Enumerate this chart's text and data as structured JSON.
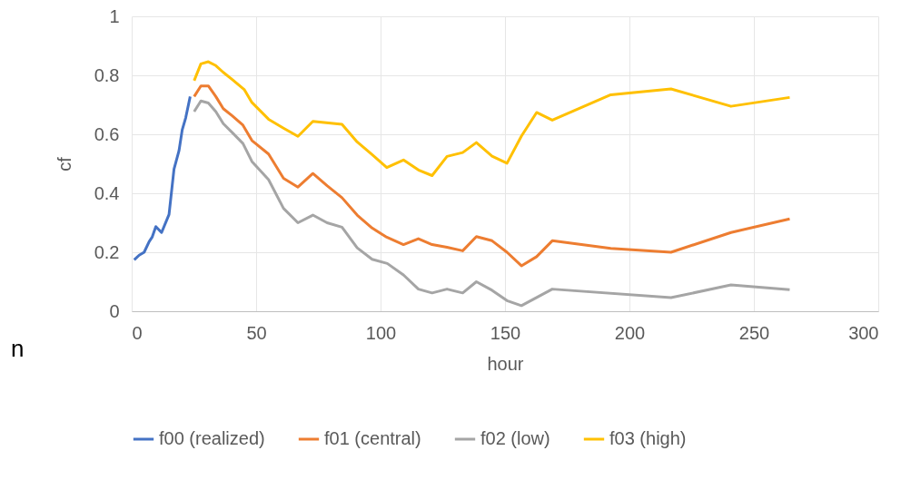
{
  "chart_data": {
    "type": "line",
    "xlabel": "hour",
    "ylabel": "cf",
    "xlim": [
      0,
      300
    ],
    "xticks": [
      0,
      50,
      100,
      150,
      200,
      250,
      300
    ],
    "ylim": [
      0,
      1
    ],
    "yticks": [
      0,
      0.2,
      0.4,
      0.6,
      0.8,
      1
    ],
    "grid": true,
    "legend": "bottom",
    "marker": "none",
    "line_style": "solid",
    "annotations": [
      "n"
    ],
    "series": [
      {
        "name": "f00 (realized)",
        "color": "#4472c4",
        "x": [
          1,
          3,
          5,
          7,
          8.2,
          9.7,
          12,
          15,
          17,
          19,
          20.3,
          21.7,
          23.5
        ],
        "values": [
          0.174,
          0.19,
          0.2,
          0.236,
          0.251,
          0.287,
          0.267,
          0.328,
          0.482,
          0.544,
          0.615,
          0.656,
          0.728
        ]
      },
      {
        "name": "f01 (central)",
        "color": "#ed7d31",
        "x": [
          25.1,
          27.8,
          30.8,
          33.8,
          36.8,
          40.5,
          44.7,
          48.3,
          55,
          61,
          66.8,
          72.8,
          78.5,
          84.5,
          90.6,
          96.6,
          102.5,
          109.2,
          115.2,
          120.7,
          126.7,
          133,
          138.5,
          144.8,
          150.8,
          156.6,
          162.7,
          169,
          192.5,
          216.7,
          240.8,
          264.4
        ],
        "values": [
          0.728,
          0.764,
          0.764,
          0.728,
          0.687,
          0.662,
          0.631,
          0.579,
          0.533,
          0.451,
          0.421,
          0.467,
          0.426,
          0.385,
          0.326,
          0.282,
          0.251,
          0.226,
          0.246,
          0.226,
          0.217,
          0.205,
          0.253,
          0.239,
          0.2,
          0.154,
          0.185,
          0.239,
          0.213,
          0.2,
          0.267,
          0.313
        ]
      },
      {
        "name": "f02 (low)",
        "color": "#a5a5a5",
        "x": [
          25.1,
          27.8,
          30.8,
          33.8,
          36.8,
          40.5,
          44.7,
          48.3,
          55,
          61,
          66.8,
          72.8,
          78.5,
          84.5,
          90.6,
          96.6,
          102.7,
          109.2,
          115.2,
          120.7,
          126.7,
          133,
          138.5,
          144.8,
          150.8,
          156.6,
          169,
          216.7,
          240.8,
          264.4
        ],
        "values": [
          0.677,
          0.713,
          0.706,
          0.677,
          0.636,
          0.605,
          0.569,
          0.508,
          0.446,
          0.349,
          0.3,
          0.326,
          0.3,
          0.285,
          0.215,
          0.176,
          0.162,
          0.123,
          0.075,
          0.062,
          0.075,
          0.062,
          0.1,
          0.071,
          0.036,
          0.019,
          0.075,
          0.046,
          0.089,
          0.073
        ]
      },
      {
        "name": "f03 (high)",
        "color": "#ffc000",
        "x": [
          25.1,
          27.8,
          30.8,
          33.8,
          36.8,
          40.5,
          45.3,
          48.3,
          55,
          61,
          66.8,
          72.8,
          84.5,
          90.6,
          96.6,
          102.5,
          109.2,
          115.2,
          120.7,
          126.7,
          133,
          138.5,
          144.8,
          150.8,
          156.6,
          162.7,
          169,
          192.5,
          216.7,
          240.8,
          264.4
        ],
        "values": [
          0.782,
          0.839,
          0.846,
          0.833,
          0.81,
          0.785,
          0.751,
          0.708,
          0.651,
          0.621,
          0.593,
          0.644,
          0.634,
          0.574,
          0.531,
          0.487,
          0.513,
          0.479,
          0.46,
          0.525,
          0.538,
          0.572,
          0.526,
          0.502,
          0.594,
          0.674,
          0.648,
          0.734,
          0.754,
          0.695,
          0.725
        ]
      }
    ]
  }
}
